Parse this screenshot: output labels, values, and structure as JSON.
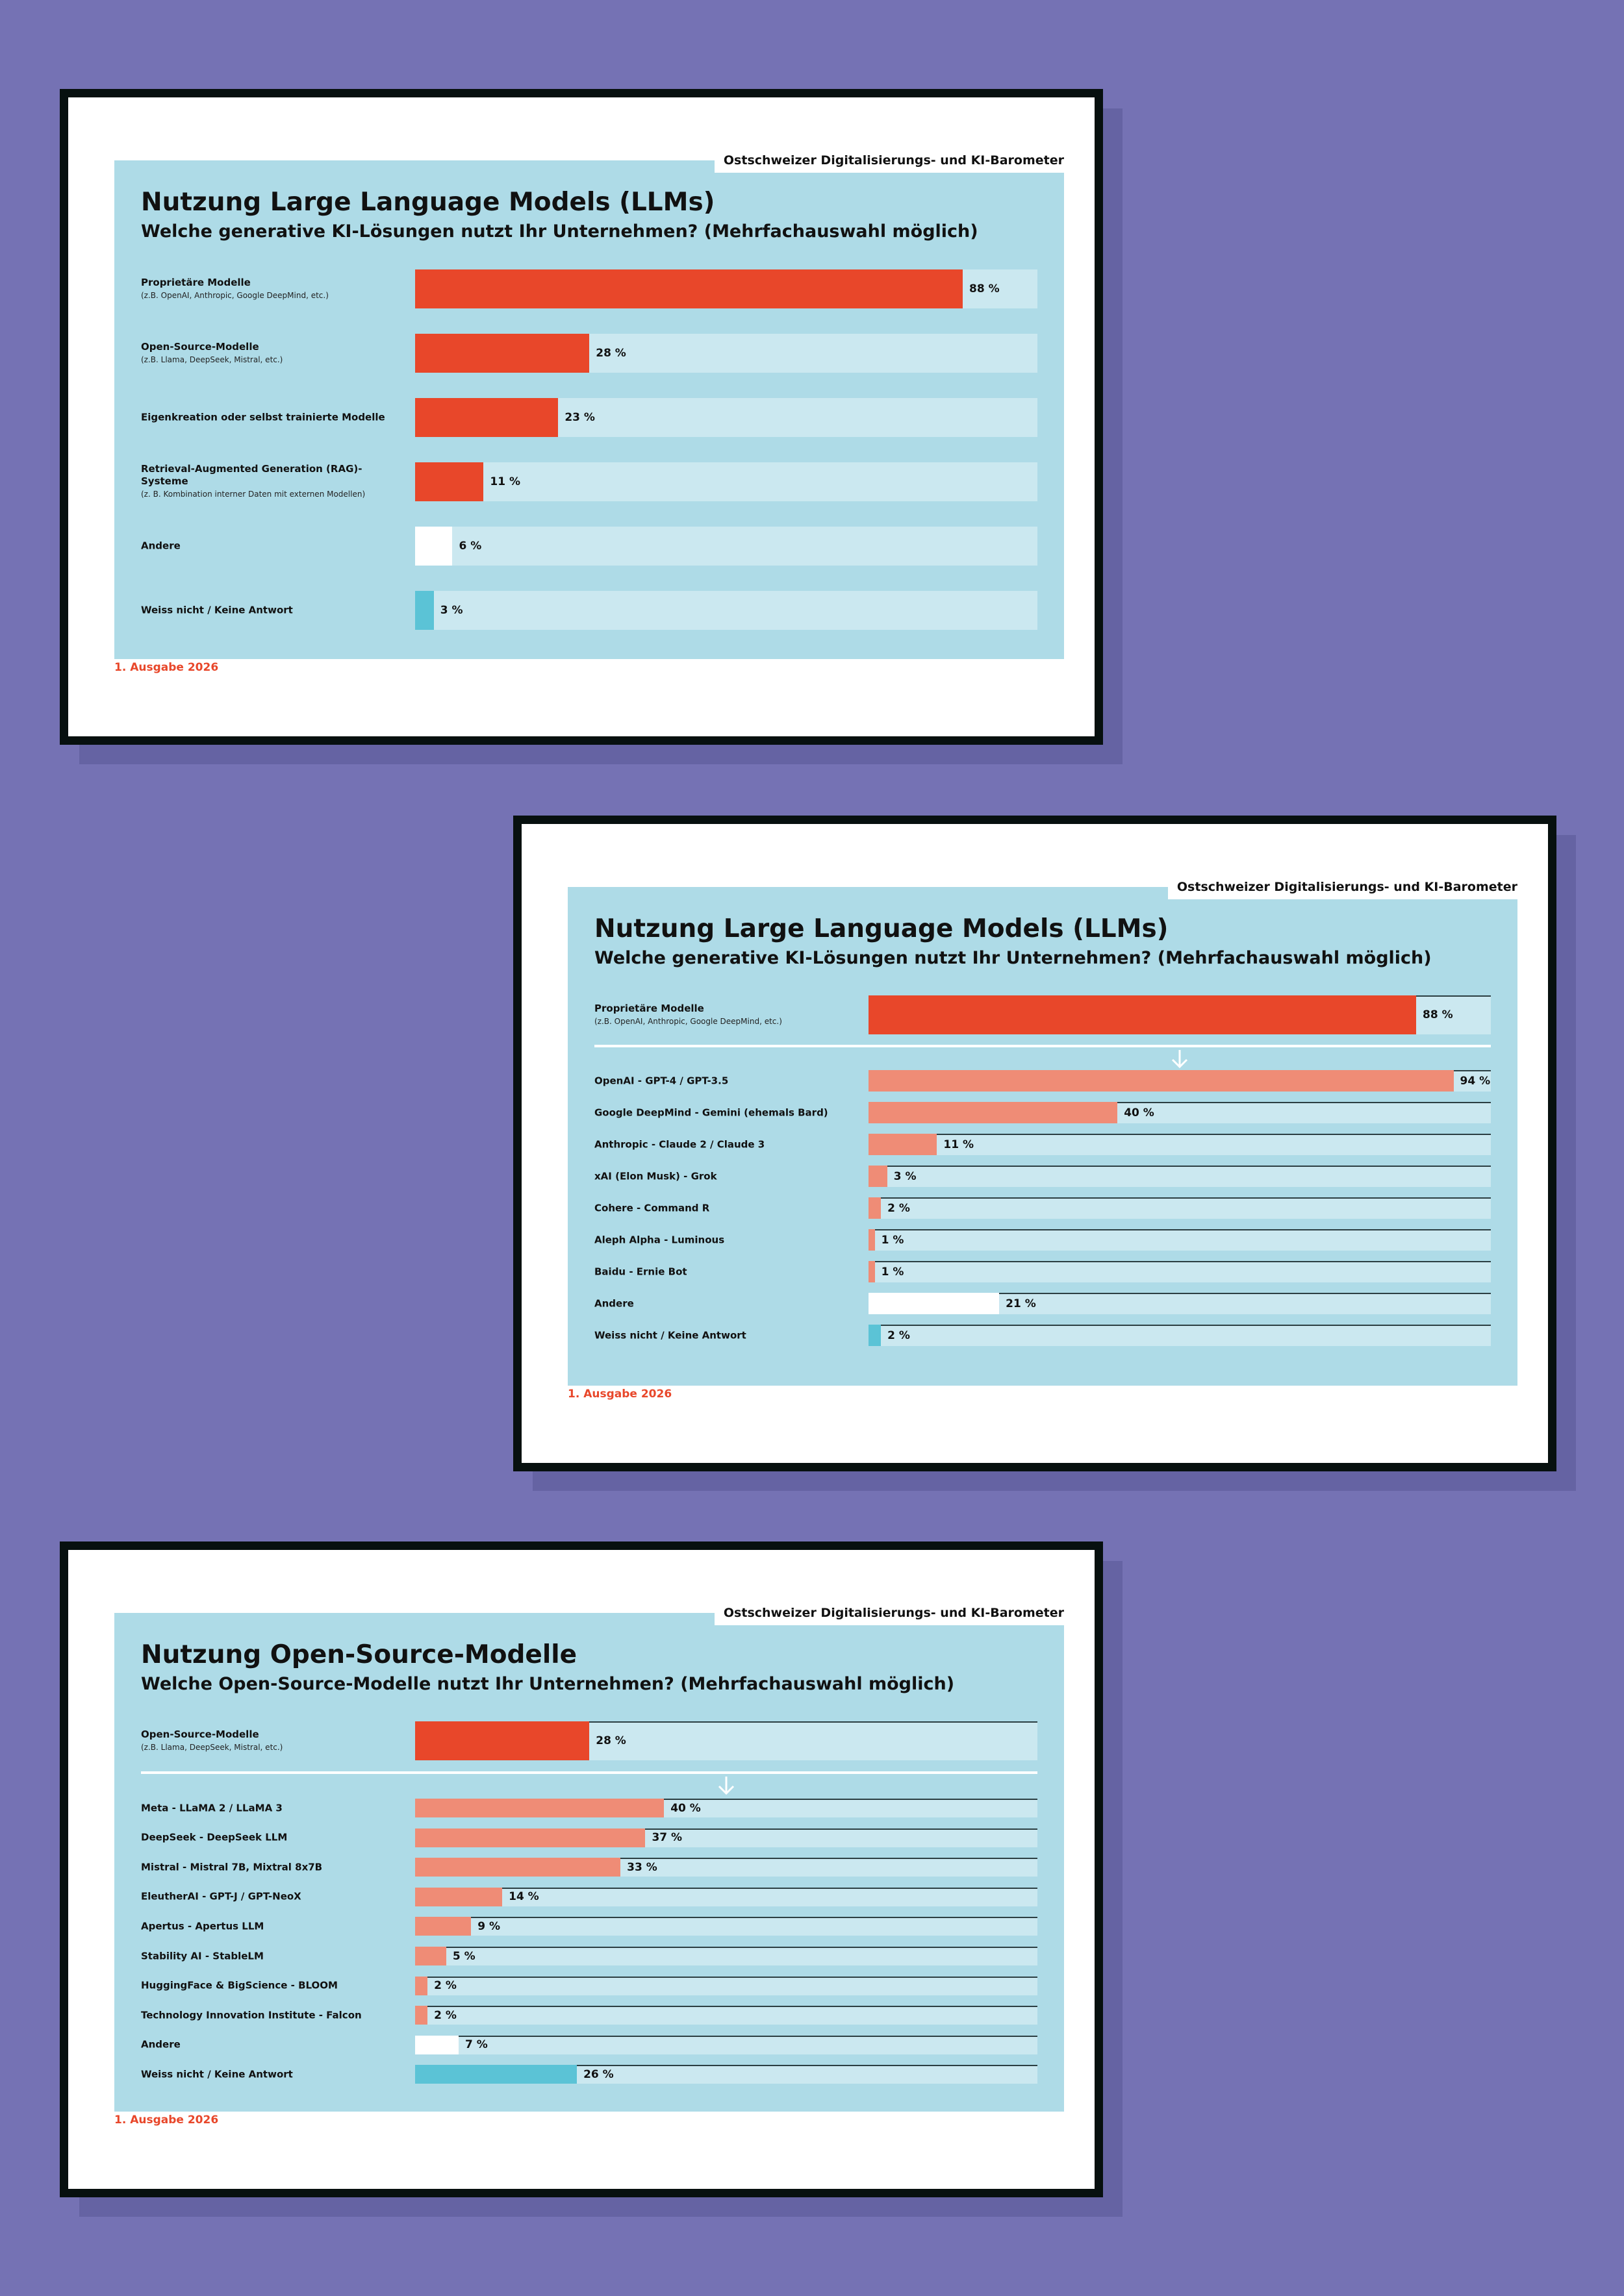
{
  "brand": "Ostschweizer Digitalisierungs- und KI-Barometer",
  "edition": "1. Ausgabe 2026",
  "colors": {
    "main": "#e8472a",
    "sub": "#ef8c76",
    "other": "#ffffff",
    "unknown": "#5bc3d6",
    "track": "#cbe8f0",
    "slide_bg": "#aedbe7",
    "page_bg": "#7572b4"
  },
  "slides": [
    {
      "title": "Nutzung Large Language Models (LLMs)",
      "subtitle": "Welche generative KI-Lösungen nutzt Ihr Unternehmen? (Mehrfachauswahl möglich)"
    },
    {
      "title": "Nutzung Large Language Models (LLMs)",
      "subtitle": "Welche generative KI-Lösungen nutzt Ihr Unternehmen? (Mehrfachauswahl möglich)"
    },
    {
      "title": "Nutzung Open-Source-Modelle",
      "subtitle": "Welche Open-Source-Modelle nutzt Ihr Unternehmen? (Mehrfachauswahl möglich)"
    }
  ],
  "chart_data": [
    {
      "type": "bar",
      "orientation": "horizontal",
      "title": "Nutzung Large Language Models (LLMs)",
      "subtitle": "Welche generative KI-Lösungen nutzt Ihr Unternehmen? (Mehrfachauswahl möglich)",
      "xlim": [
        0,
        100
      ],
      "unit": "%",
      "categories": [
        {
          "label": "Proprietäre Modelle",
          "note": "(z.B. OpenAI, Anthropic, Google DeepMind, etc.)",
          "value": 88,
          "value_label": "88 %",
          "color": "main"
        },
        {
          "label": "Open-Source-Modelle",
          "note": "(z.B. Llama, DeepSeek, Mistral, etc.)",
          "value": 28,
          "value_label": "28 %",
          "color": "main"
        },
        {
          "label": "Eigenkreation oder selbst trainierte Modelle",
          "value": 23,
          "value_label": "23 %",
          "color": "main"
        },
        {
          "label": "Retrieval-Augmented Generation (RAG)-Systeme",
          "note": "(z. B. Kombination interner Daten mit externen Modellen)",
          "value": 11,
          "value_label": "11 %",
          "color": "main"
        },
        {
          "label": "Andere",
          "value": 6,
          "value_label": "6 %",
          "color": "other"
        },
        {
          "label": "Weiss nicht / Keine Antwort",
          "value": 3,
          "value_label": "3 %",
          "color": "unknown"
        }
      ]
    },
    {
      "type": "bar",
      "orientation": "horizontal",
      "title": "Nutzung Large Language Models (LLMs)",
      "subtitle": "Welche generative KI-Lösungen nutzt Ihr Unternehmen? (Mehrfachauswahl möglich)",
      "xlim": [
        0,
        100
      ],
      "unit": "%",
      "header": {
        "label": "Proprietäre Modelle",
        "note": "(z.B. OpenAI, Anthropic, Google DeepMind, etc.)",
        "value": 88,
        "value_label": "88 %",
        "color": "main"
      },
      "categories": [
        {
          "label": "OpenAI - GPT-4 / GPT-3.5",
          "value": 94,
          "value_label": "94 %",
          "color": "sub"
        },
        {
          "label": "Google DeepMind - Gemini (ehemals Bard)",
          "value": 40,
          "value_label": "40 %",
          "color": "sub"
        },
        {
          "label": "Anthropic - Claude 2 / Claude 3",
          "value": 11,
          "value_label": "11 %",
          "color": "sub"
        },
        {
          "label": "xAI (Elon Musk) - Grok",
          "value": 3,
          "value_label": "3 %",
          "color": "sub"
        },
        {
          "label": "Cohere - Command R",
          "value": 2,
          "value_label": "2 %",
          "color": "sub"
        },
        {
          "label": "Aleph Alpha - Luminous",
          "value": 1,
          "value_label": "1 %",
          "color": "sub"
        },
        {
          "label": "Baidu - Ernie Bot",
          "value": 1,
          "value_label": "1 %",
          "color": "sub"
        },
        {
          "label": "Andere",
          "value": 21,
          "value_label": "21 %",
          "color": "other"
        },
        {
          "label": "Weiss nicht / Keine Antwort",
          "value": 2,
          "value_label": "2 %",
          "color": "unknown"
        }
      ]
    },
    {
      "type": "bar",
      "orientation": "horizontal",
      "title": "Nutzung Open-Source-Modelle",
      "subtitle": "Welche Open-Source-Modelle nutzt Ihr Unternehmen? (Mehrfachauswahl möglich)",
      "xlim": [
        0,
        100
      ],
      "unit": "%",
      "header": {
        "label": "Open-Source-Modelle",
        "note": "(z.B. Llama, DeepSeek, Mistral, etc.)",
        "value": 28,
        "value_label": "28 %",
        "color": "main"
      },
      "categories": [
        {
          "label": "Meta - LLaMA 2 / LLaMA 3",
          "value": 40,
          "value_label": "40 %",
          "color": "sub"
        },
        {
          "label": "DeepSeek - DeepSeek LLM",
          "value": 37,
          "value_label": "37 %",
          "color": "sub"
        },
        {
          "label": "Mistral - Mistral 7B, Mixtral 8x7B",
          "value": 33,
          "value_label": "33 %",
          "color": "sub"
        },
        {
          "label": "EleutherAI - GPT-J / GPT-NeoX",
          "value": 14,
          "value_label": "14 %",
          "color": "sub"
        },
        {
          "label": "Apertus - Apertus LLM",
          "value": 9,
          "value_label": "9 %",
          "color": "sub"
        },
        {
          "label": "Stability AI - StableLM",
          "value": 5,
          "value_label": "5 %",
          "color": "sub"
        },
        {
          "label": "HuggingFace & BigScience - BLOOM",
          "value": 2,
          "value_label": "2 %",
          "color": "sub"
        },
        {
          "label": "Technology Innovation Institute - Falcon",
          "value": 2,
          "value_label": "2 %",
          "color": "sub"
        },
        {
          "label": "Andere",
          "value": 7,
          "value_label": "7 %",
          "color": "other"
        },
        {
          "label": "Weiss nicht / Keine Antwort",
          "value": 26,
          "value_label": "26 %",
          "color": "unknown"
        }
      ]
    }
  ]
}
